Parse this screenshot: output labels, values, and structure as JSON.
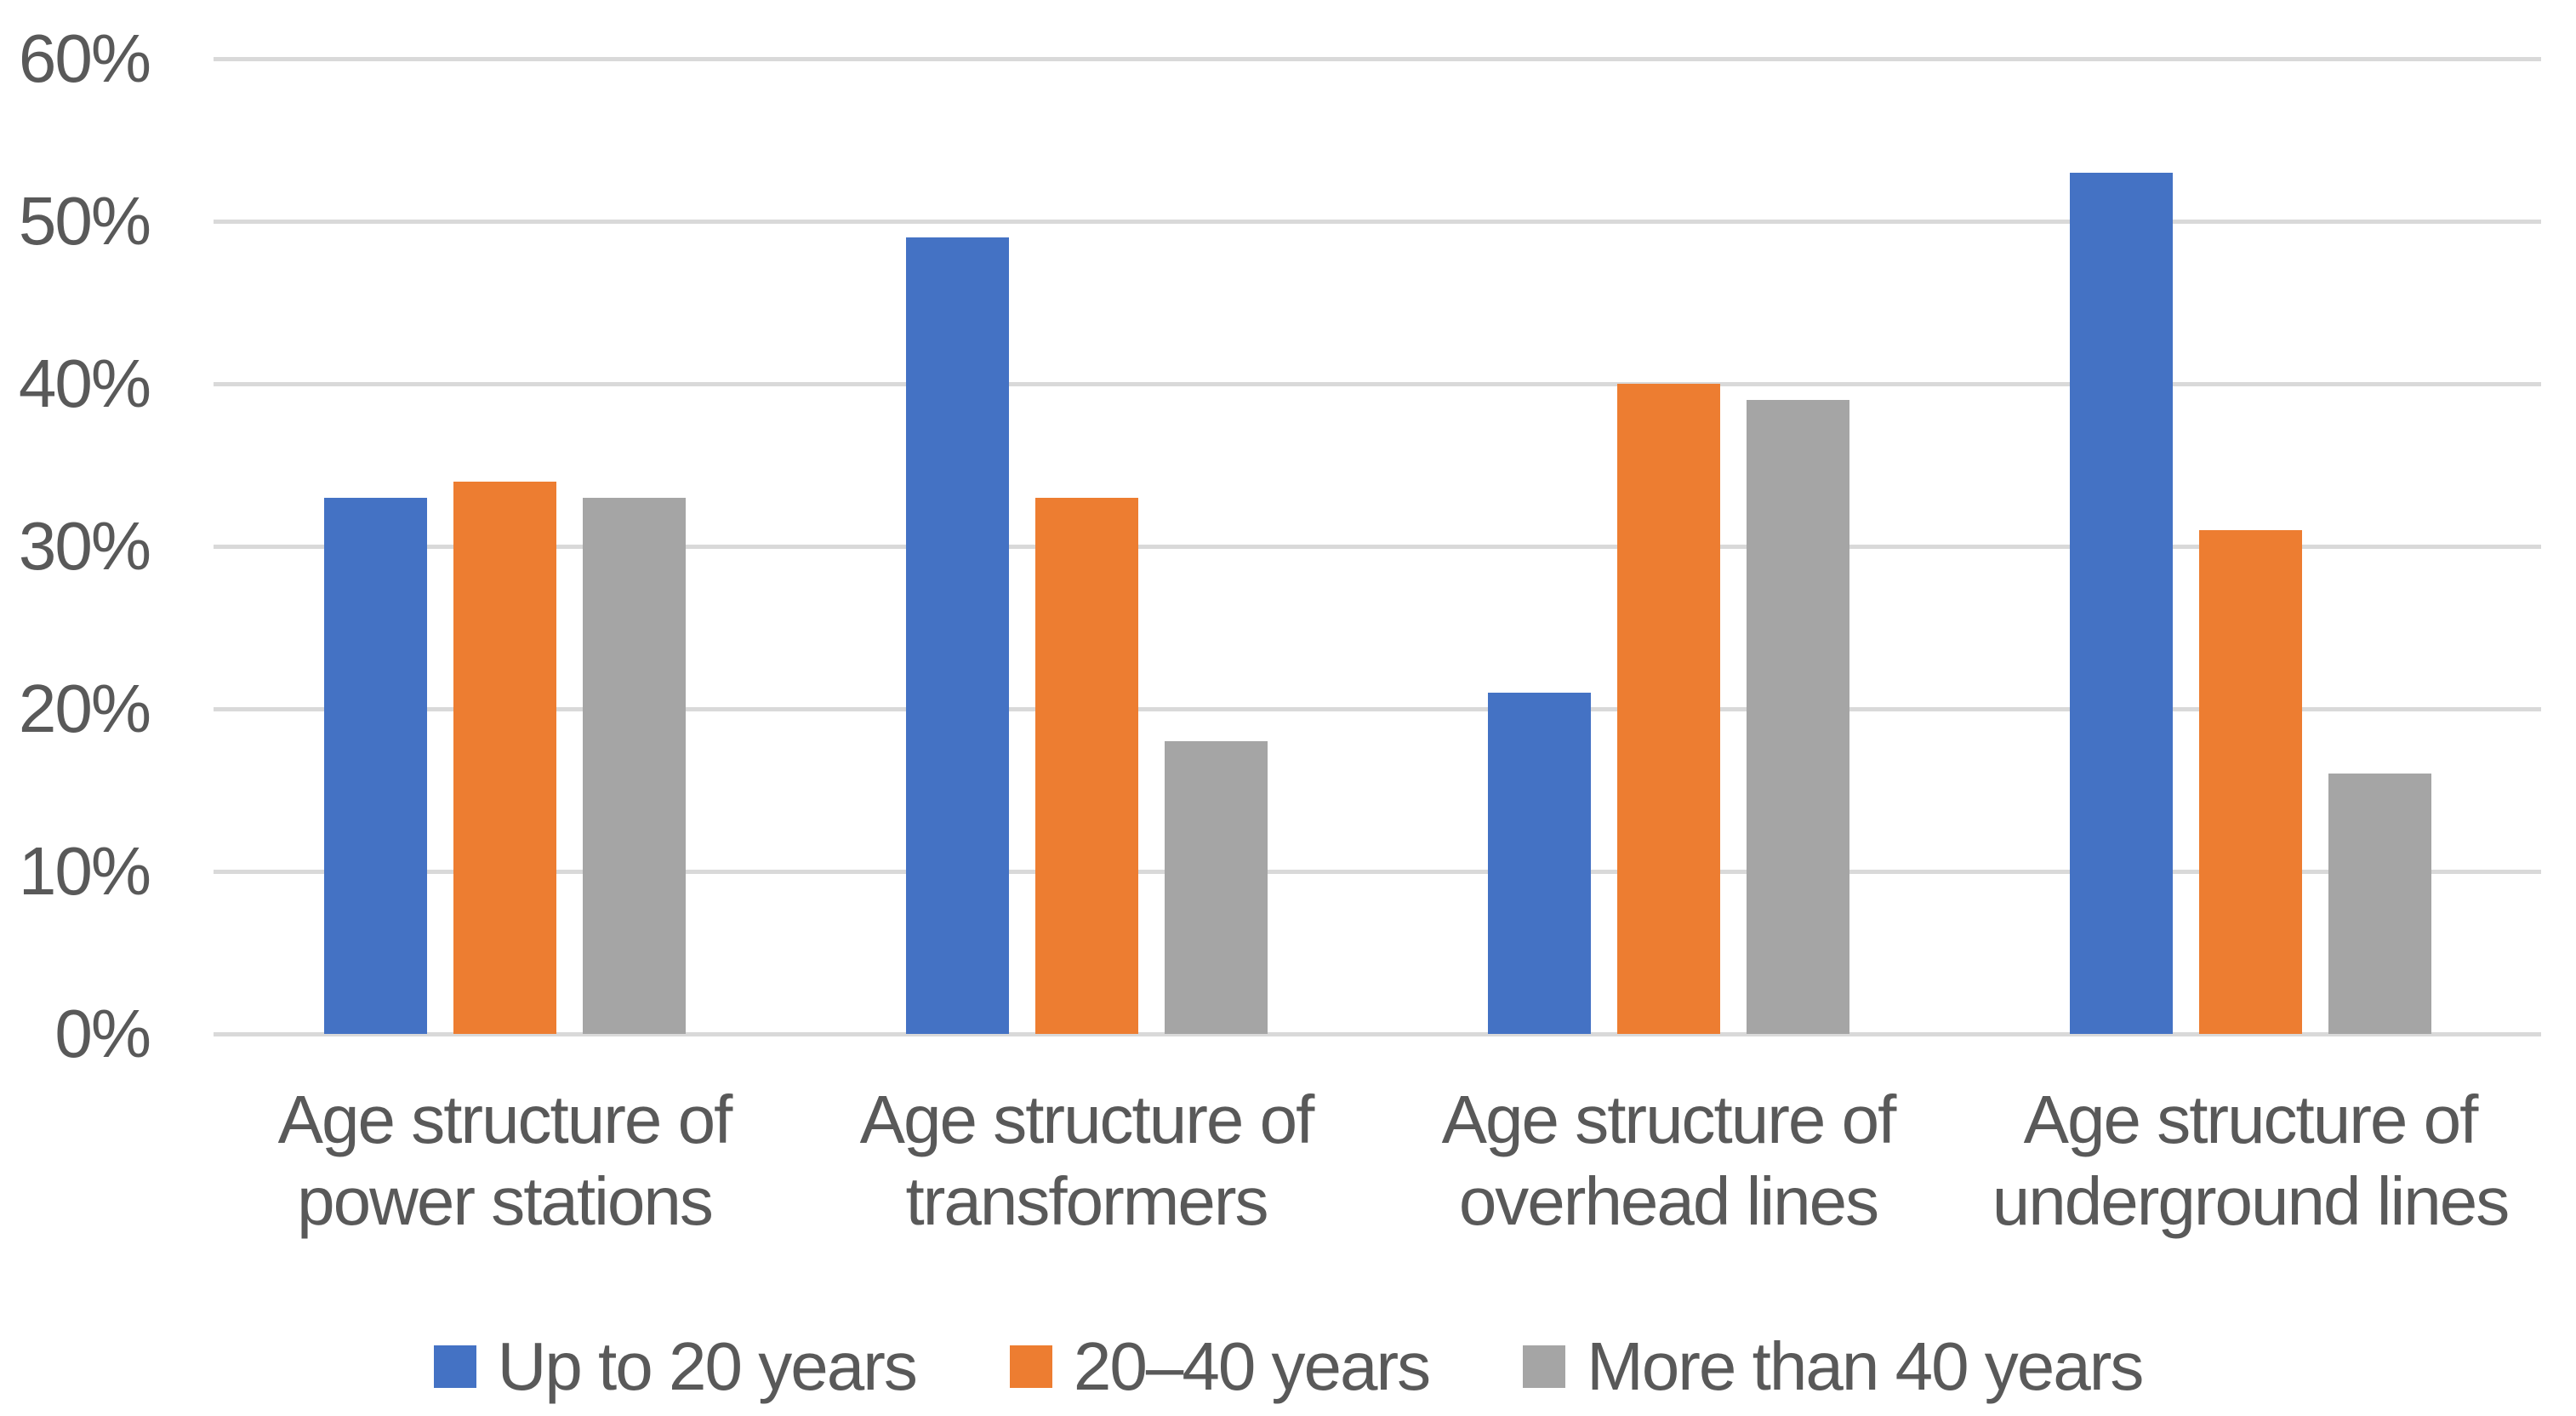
{
  "chart_data": {
    "type": "bar",
    "title": "",
    "xlabel": "",
    "ylabel": "",
    "categories": [
      "Age structure of\npower stations",
      "Age structure of\ntransformers",
      "Age structure of\noverhead lines",
      "Age structure of\nunderground lines"
    ],
    "series": [
      {
        "name": "Up to 20 years",
        "color": "#4472C4",
        "values": [
          33,
          49,
          21,
          53
        ]
      },
      {
        "name": "20–40 years",
        "color": "#ED7D31",
        "values": [
          34,
          33,
          40,
          31
        ]
      },
      {
        "name": "More than 40 years",
        "color": "#A5A5A5",
        "values": [
          33,
          18,
          39,
          16
        ]
      }
    ],
    "y_axis": {
      "min": 0,
      "max": 60,
      "step": 10,
      "tick_labels": [
        "0%",
        "10%",
        "20%",
        "30%",
        "40%",
        "50%",
        "60%"
      ],
      "format": "percent"
    },
    "grid": true,
    "legend_position": "bottom",
    "colors": {
      "gridline": "#D9D9D9",
      "text": "#595959",
      "background": "#FFFFFF"
    }
  }
}
